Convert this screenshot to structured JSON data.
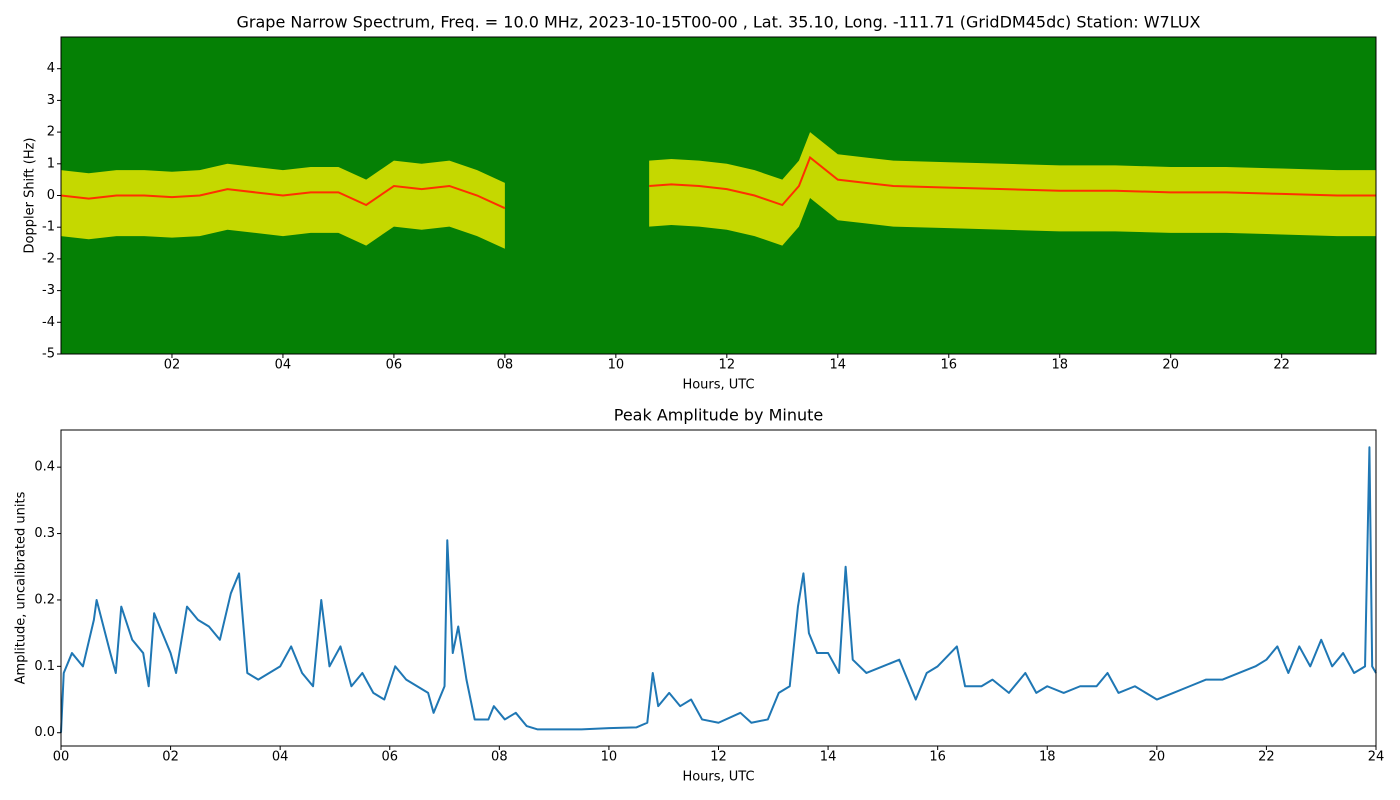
{
  "chart_data": [
    {
      "type": "spectrogram",
      "title": "Grape Narrow Spectrum, Freq. = 10.0 MHz, 2023-10-15T00-00 , Lat.  35.10, Long. -111.71 (GridDM45dc) Station: W7LUX",
      "xlabel": "Hours, UTC",
      "ylabel": "Doppler Shift (Hz)",
      "xlim": [
        0,
        23.7
      ],
      "ylim": [
        -5,
        5
      ],
      "xticks": [
        {
          "value": 2,
          "label": "02"
        },
        {
          "value": 4,
          "label": "04"
        },
        {
          "value": 6,
          "label": "06"
        },
        {
          "value": 8,
          "label": "08"
        },
        {
          "value": 10,
          "label": "10"
        },
        {
          "value": 12,
          "label": "12"
        },
        {
          "value": 14,
          "label": "14"
        },
        {
          "value": 16,
          "label": "16"
        },
        {
          "value": 18,
          "label": "18"
        },
        {
          "value": 20,
          "label": "20"
        },
        {
          "value": 22,
          "label": "22"
        }
      ],
      "yticks": [
        -5,
        -4,
        -3,
        -2,
        -1,
        0,
        1,
        2,
        3,
        4
      ],
      "background_color": "#058005",
      "band_color": "#e8e800",
      "color": "#ff3000",
      "x": [
        0,
        0.5,
        1,
        1.5,
        2,
        2.5,
        3,
        3.5,
        4,
        4.5,
        5,
        5.5,
        6,
        6.5,
        7,
        7.5,
        8,
        8.5,
        10.6,
        11,
        11.5,
        12,
        12.5,
        13,
        13.3,
        13.5,
        14,
        14.5,
        15,
        16,
        17,
        18,
        19,
        20,
        21,
        22,
        23,
        23.7
      ],
      "values": [
        0,
        -0.1,
        0,
        0,
        -0.05,
        0,
        0.2,
        0.1,
        0,
        0.1,
        0.1,
        -0.3,
        0.3,
        0.2,
        0.3,
        0,
        -0.4,
        null,
        0.3,
        0.35,
        0.3,
        0.2,
        0,
        -0.3,
        0.3,
        1.2,
        0.5,
        0.4,
        0.3,
        0.25,
        0.2,
        0.15,
        0.15,
        0.1,
        0.1,
        0.05,
        0,
        0
      ]
    },
    {
      "type": "line",
      "title": "Peak Amplitude by Minute",
      "xlabel": "Hours, UTC",
      "ylabel": "Amplitude, uncalibrated units",
      "xlim": [
        0,
        24
      ],
      "ylim": [
        -0.02,
        0.456
      ],
      "xticks": [
        {
          "value": 0,
          "label": "00"
        },
        {
          "value": 2,
          "label": "02"
        },
        {
          "value": 4,
          "label": "04"
        },
        {
          "value": 6,
          "label": "06"
        },
        {
          "value": 8,
          "label": "08"
        },
        {
          "value": 10,
          "label": "10"
        },
        {
          "value": 12,
          "label": "12"
        },
        {
          "value": 14,
          "label": "14"
        },
        {
          "value": 16,
          "label": "16"
        },
        {
          "value": 18,
          "label": "18"
        },
        {
          "value": 20,
          "label": "20"
        },
        {
          "value": 22,
          "label": "22"
        },
        {
          "value": 24,
          "label": "24"
        }
      ],
      "yticks": [
        {
          "value": 0,
          "label": "0.0"
        },
        0.1,
        0.2,
        0.3,
        0.4
      ],
      "color": "#1f77b4",
      "x": [
        0,
        0.05,
        0.2,
        0.4,
        0.6,
        0.65,
        0.9,
        1.0,
        1.1,
        1.3,
        1.5,
        1.6,
        1.7,
        1.9,
        2.0,
        2.1,
        2.3,
        2.5,
        2.7,
        2.9,
        3.1,
        3.25,
        3.4,
        3.6,
        3.8,
        4.0,
        4.2,
        4.4,
        4.6,
        4.75,
        4.9,
        5.1,
        5.3,
        5.5,
        5.7,
        5.9,
        6.1,
        6.3,
        6.5,
        6.7,
        6.8,
        7.0,
        7.05,
        7.15,
        7.25,
        7.4,
        7.55,
        7.8,
        7.9,
        8.1,
        8.3,
        8.5,
        8.7,
        9.0,
        9.5,
        10,
        10.5,
        10.7,
        10.8,
        10.9,
        11.1,
        11.3,
        11.5,
        11.7,
        12.0,
        12.4,
        12.6,
        12.9,
        13.1,
        13.3,
        13.45,
        13.55,
        13.65,
        13.8,
        14.0,
        14.2,
        14.32,
        14.45,
        14.7,
        15.0,
        15.3,
        15.6,
        15.8,
        16.0,
        16.35,
        16.5,
        16.8,
        17.0,
        17.3,
        17.6,
        17.8,
        18.0,
        18.3,
        18.6,
        18.9,
        19.1,
        19.3,
        19.6,
        19.8,
        20.0,
        20.3,
        20.6,
        20.9,
        21.2,
        21.5,
        21.8,
        22.0,
        22.2,
        22.4,
        22.6,
        22.8,
        23.0,
        23.2,
        23.4,
        23.6,
        23.8,
        23.88,
        23.93,
        24.0
      ],
      "values": [
        0.0,
        0.09,
        0.12,
        0.1,
        0.17,
        0.2,
        0.12,
        0.09,
        0.19,
        0.14,
        0.12,
        0.07,
        0.18,
        0.14,
        0.12,
        0.09,
        0.19,
        0.17,
        0.16,
        0.14,
        0.21,
        0.24,
        0.09,
        0.08,
        0.09,
        0.1,
        0.13,
        0.09,
        0.07,
        0.2,
        0.1,
        0.13,
        0.07,
        0.09,
        0.06,
        0.05,
        0.1,
        0.08,
        0.07,
        0.06,
        0.03,
        0.07,
        0.29,
        0.12,
        0.16,
        0.08,
        0.02,
        0.02,
        0.04,
        0.02,
        0.03,
        0.01,
        0.005,
        0.005,
        0.005,
        0.007,
        0.008,
        0.015,
        0.09,
        0.04,
        0.06,
        0.04,
        0.05,
        0.02,
        0.015,
        0.03,
        0.015,
        0.02,
        0.06,
        0.07,
        0.19,
        0.24,
        0.15,
        0.12,
        0.12,
        0.09,
        0.25,
        0.11,
        0.09,
        0.1,
        0.11,
        0.05,
        0.09,
        0.1,
        0.13,
        0.07,
        0.07,
        0.08,
        0.06,
        0.09,
        0.06,
        0.07,
        0.06,
        0.07,
        0.07,
        0.09,
        0.06,
        0.07,
        0.06,
        0.05,
        0.06,
        0.07,
        0.08,
        0.08,
        0.09,
        0.1,
        0.11,
        0.13,
        0.09,
        0.13,
        0.1,
        0.14,
        0.1,
        0.12,
        0.09,
        0.1,
        0.43,
        0.1,
        0.09
      ]
    }
  ]
}
